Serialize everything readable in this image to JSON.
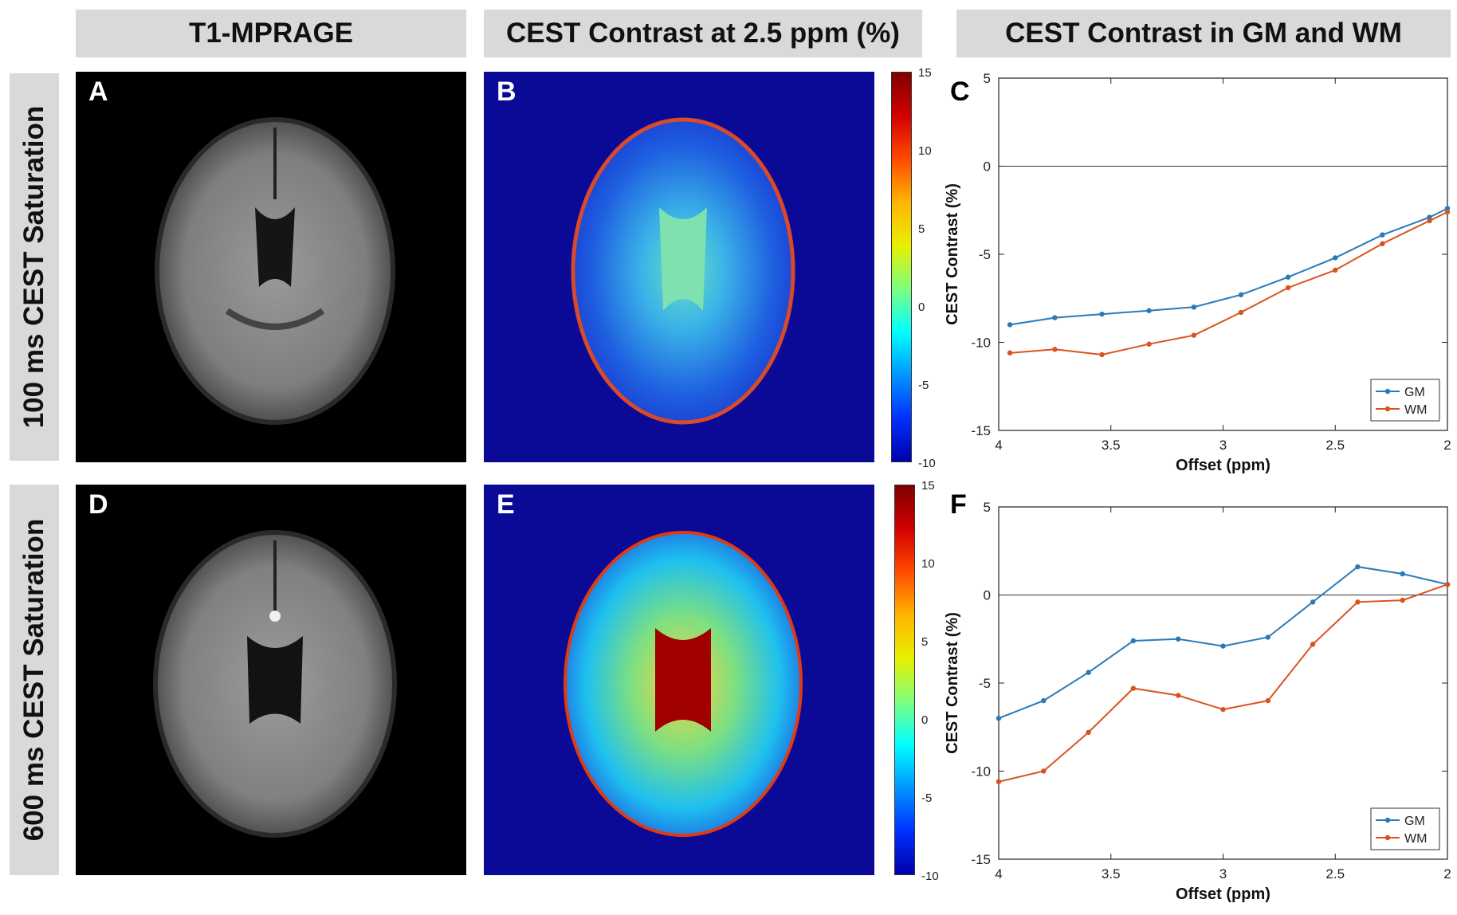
{
  "headers": {
    "col1": "T1-MPRAGE",
    "col2": "CEST Contrast at 2.5 ppm (%)",
    "col3": "CEST Contrast in GM and WM",
    "row1": "100 ms CEST Saturation",
    "row2": "600 ms CEST Saturation"
  },
  "panels": {
    "A": "A",
    "B": "B",
    "C": "C",
    "D": "D",
    "E": "E",
    "F": "F"
  },
  "colorbar": {
    "ticks": [
      "15",
      "10",
      "5",
      "0",
      "-5",
      "-10"
    ]
  },
  "colors": {
    "gm": "#2a7ab8",
    "wm": "#d9531e",
    "header_bg": "#d9d9d9"
  },
  "chart_data": [
    {
      "type": "line",
      "panel": "C",
      "xlabel": "Offset (ppm)",
      "ylabel": "CEST Contrast (%)",
      "xlim": [
        4,
        2
      ],
      "ylim": [
        -15,
        5
      ],
      "xticks": [
        "4",
        "3.5",
        "3",
        "2.5",
        "2"
      ],
      "yticks": [
        "5",
        "0",
        "-5",
        "-10",
        "-15"
      ],
      "x": [
        3.95,
        3.75,
        3.54,
        3.33,
        3.13,
        2.92,
        2.71,
        2.5,
        2.29,
        2.08,
        2.0
      ],
      "series": [
        {
          "name": "GM",
          "values": [
            -9.0,
            -8.6,
            -8.4,
            -8.2,
            -8.0,
            -7.3,
            -6.3,
            -5.2,
            -3.9,
            -2.9,
            -2.4
          ]
        },
        {
          "name": "WM",
          "values": [
            -10.6,
            -10.4,
            -10.7,
            -10.1,
            -9.6,
            -8.3,
            -6.9,
            -5.9,
            -4.4,
            -3.1,
            -2.6
          ]
        }
      ],
      "legend": [
        "GM",
        "WM"
      ],
      "legend_position": "bottom-right"
    },
    {
      "type": "line",
      "panel": "F",
      "xlabel": "Offset (ppm)",
      "ylabel": "CEST Contrast (%)",
      "xlim": [
        4,
        2
      ],
      "ylim": [
        -15,
        5
      ],
      "xticks": [
        "4",
        "3.5",
        "3",
        "2.5",
        "2"
      ],
      "yticks": [
        "5",
        "0",
        "-5",
        "-10",
        "-15"
      ],
      "x": [
        4.0,
        3.8,
        3.6,
        3.4,
        3.2,
        3.0,
        2.8,
        2.6,
        2.4,
        2.2,
        2.0
      ],
      "series": [
        {
          "name": "GM",
          "values": [
            -7.0,
            -6.0,
            -4.4,
            -2.6,
            -2.5,
            -2.9,
            -2.4,
            -0.4,
            1.6,
            1.2,
            0.6
          ]
        },
        {
          "name": "WM",
          "values": [
            -10.6,
            -10.0,
            -7.8,
            -5.3,
            -5.7,
            -6.5,
            -6.0,
            -2.8,
            -0.4,
            -0.3,
            0.6
          ]
        }
      ],
      "legend": [
        "GM",
        "WM"
      ],
      "legend_position": "bottom-right"
    }
  ]
}
